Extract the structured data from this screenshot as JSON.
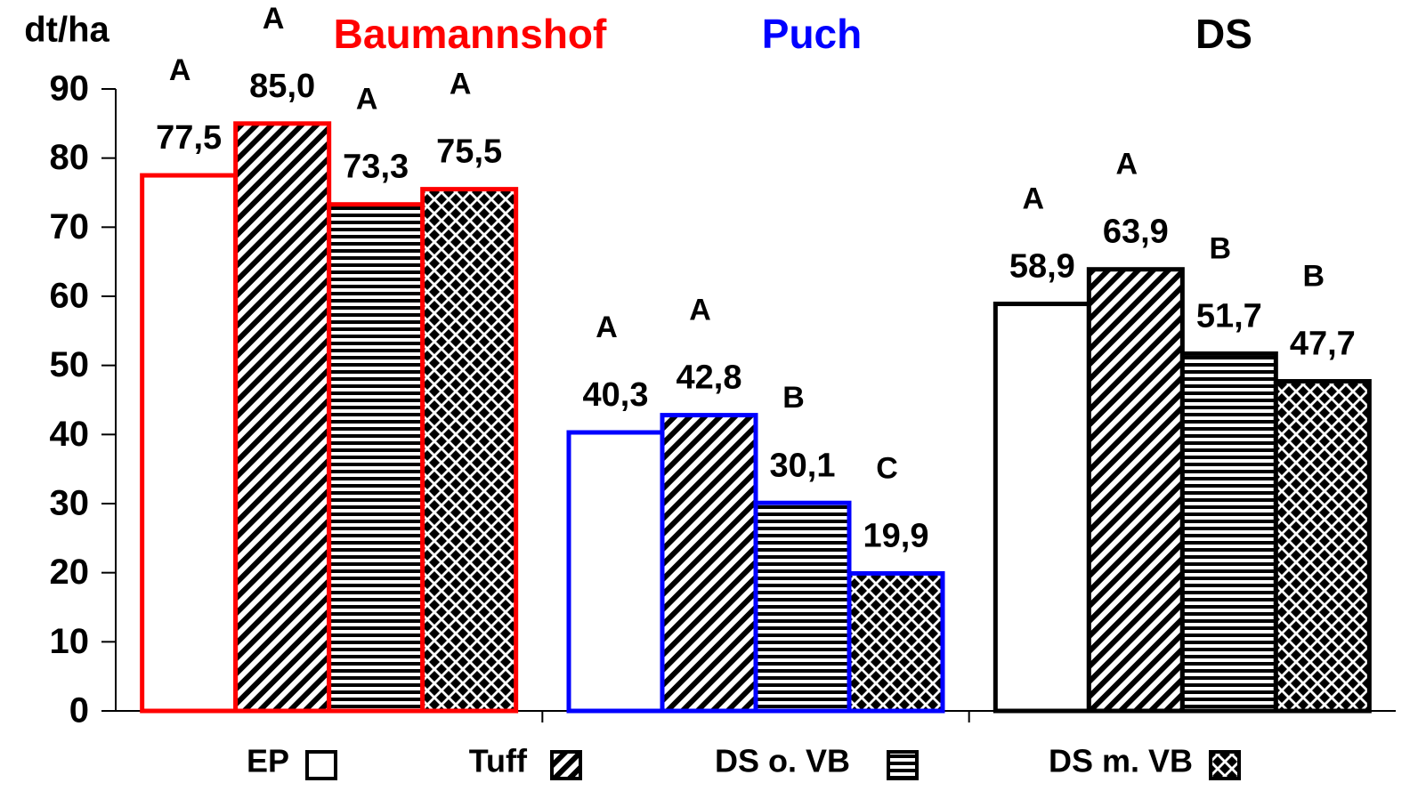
{
  "chart_data": {
    "type": "bar",
    "y_label": "dt/ha",
    "categories": [
      "Baumannshof",
      "Puch",
      "DS"
    ],
    "category_colors": [
      "#ff0000",
      "#0000ff",
      "#000000"
    ],
    "series": [
      {
        "name": "EP",
        "pattern": "none",
        "values": [
          77.5,
          40.3,
          58.9
        ],
        "value_labels": [
          "77,5",
          "40,3",
          "58,9"
        ],
        "annotations": [
          "A",
          "A",
          "A"
        ]
      },
      {
        "name": "Tuff",
        "pattern": "diagonal",
        "values": [
          85.0,
          42.8,
          63.9
        ],
        "value_labels": [
          "85,0",
          "42,8",
          "63,9"
        ],
        "annotations": [
          "A",
          "A",
          "A"
        ]
      },
      {
        "name": "DS o. VB",
        "pattern": "horizontal",
        "values": [
          73.3,
          30.1,
          51.7
        ],
        "value_labels": [
          "73,3",
          "30,1",
          "51,7"
        ],
        "annotations": [
          "A",
          "B",
          "B"
        ]
      },
      {
        "name": "DS m. VB",
        "pattern": "checker",
        "values": [
          75.5,
          19.9,
          47.7
        ],
        "value_labels": [
          "75,5",
          "19,9",
          "47,7"
        ],
        "annotations": [
          "A",
          "C",
          "B"
        ]
      }
    ],
    "ylim": [
      0,
      90
    ],
    "yticks": [
      0,
      10,
      20,
      30,
      40,
      50,
      60,
      70,
      80,
      90
    ]
  }
}
